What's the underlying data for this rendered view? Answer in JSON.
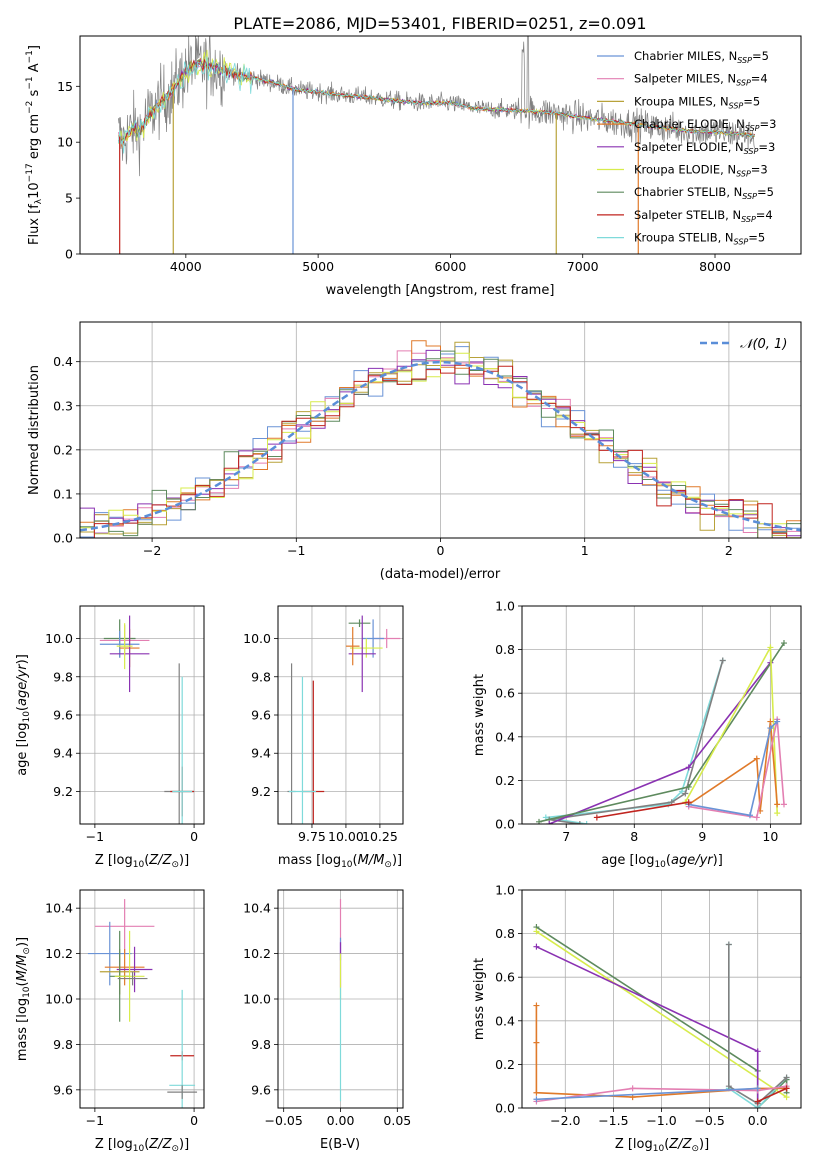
{
  "figure": {
    "title": "PLATE=2086, MJD=53401, FIBERID=0251, z=0.091"
  },
  "colors": {
    "blue": "#6a93d6",
    "pink": "#e37fb2",
    "olive": "#b8a23a",
    "orange": "#e07a2a",
    "purple": "#8a32b2",
    "lime": "#d7ec4c",
    "darkgreen": "#5e8a5e",
    "red": "#c0241f",
    "cyan": "#7fdada",
    "gray": "#808080",
    "dashed": "#5a8ed8"
  },
  "chart_data": [
    {
      "id": "spectrum",
      "type": "line",
      "xlabel": "wavelength [Angstrom, rest frame]",
      "ylabel": "Flux [f_λ10^-17 erg cm^-2 s^-1 A^-1]",
      "xlim": [
        3200,
        8650
      ],
      "ylim": [
        0,
        19.5
      ],
      "xticks": [
        4000,
        5000,
        6000,
        7000,
        8000
      ],
      "yticks": [
        0,
        5,
        10,
        15
      ],
      "legend_position": "top-right",
      "series": [
        {
          "name": "Chabrier MILES, N_SSP=5",
          "color": "blue"
        },
        {
          "name": "Salpeter MILES, N_SSP=4",
          "color": "pink"
        },
        {
          "name": "Kroupa MILES, N_SSP=5",
          "color": "olive"
        },
        {
          "name": "Chabrier ELODIE, N_SSP=3",
          "color": "orange"
        },
        {
          "name": "Salpeter ELODIE, N_SSP=3",
          "color": "purple"
        },
        {
          "name": "Kroupa ELODIE, N_SSP=3",
          "color": "lime"
        },
        {
          "name": "Chabrier STELIB, N_SSP=5",
          "color": "darkgreen"
        },
        {
          "name": "Salpeter STELIB, N_SSP=4",
          "color": "red"
        },
        {
          "name": "Kroupa STELIB, N_SSP=5",
          "color": "cyan"
        }
      ],
      "model_continuum": {
        "x": [
          3500,
          3520,
          3560,
          3600,
          3650,
          3700,
          3750,
          3800,
          3850,
          3900,
          3950,
          4000,
          4050,
          4100,
          4150,
          4200,
          4300,
          4400,
          4500,
          4600,
          4700,
          4800,
          4900,
          5000,
          5200,
          5400,
          5600,
          5800,
          6000,
          6200,
          6400,
          6600,
          6800,
          7000,
          7200,
          7400,
          7600,
          7800,
          8000,
          8200,
          8300
        ],
        "y": [
          10.5,
          10.0,
          10.7,
          11.2,
          11.0,
          12.0,
          12.8,
          13.5,
          14.0,
          14.6,
          15.5,
          16.4,
          16.8,
          17.0,
          16.8,
          16.8,
          16.4,
          16.0,
          15.8,
          15.5,
          15.2,
          14.8,
          14.6,
          14.5,
          14.2,
          14.0,
          13.7,
          13.5,
          13.5,
          13.0,
          12.9,
          12.8,
          12.6,
          12.2,
          11.9,
          11.6,
          11.3,
          11.0,
          10.9,
          10.7,
          10.6
        ]
      },
      "dropouts": [
        {
          "x": 3500,
          "color": "red"
        },
        {
          "x": 3905,
          "color": "olive"
        },
        {
          "x": 4810,
          "color": "blue"
        },
        {
          "x": 6800,
          "color": "olive"
        },
        {
          "x": 7420,
          "color": "orange"
        }
      ]
    },
    {
      "id": "residuals",
      "type": "step",
      "xlabel": "(data-model)/error",
      "ylabel": "Normed distribution",
      "xlim": [
        -2.5,
        2.5
      ],
      "ylim": [
        0,
        0.49
      ],
      "xticks": [
        -2,
        -1,
        0,
        1,
        2
      ],
      "yticks": [
        0.0,
        0.1,
        0.2,
        0.3,
        0.4
      ],
      "grid": true,
      "legend": "𝒩(0, 1)",
      "legend_position": "top-right",
      "bin_width": 0.1
    },
    {
      "id": "age_vs_Z",
      "type": "errorbar",
      "xlabel": "Z [log10(Z/Z⊙)]",
      "ylabel": "age [log10(age/yr)]",
      "xlim": [
        -1.15,
        0.1
      ],
      "ylim": [
        9.03,
        10.17
      ],
      "xticks": [
        -1,
        0
      ],
      "yticks": [
        9.2,
        9.4,
        9.6,
        9.8,
        10.0
      ],
      "grid": true,
      "points": [
        {
          "x": -0.75,
          "y": 10.0,
          "xerr": 0.16,
          "yerr": 0.1,
          "color": "darkgreen"
        },
        {
          "x": -0.7,
          "y": 9.99,
          "xerr": 0.25,
          "yerr": 0.08,
          "color": "pink"
        },
        {
          "x": -0.75,
          "y": 9.97,
          "xerr": 0.2,
          "yerr": 0.07,
          "color": "blue"
        },
        {
          "x": -0.65,
          "y": 9.95,
          "xerr": 0.1,
          "yerr": 0.1,
          "color": "orange"
        },
        {
          "x": -0.65,
          "y": 9.92,
          "xerr": 0.2,
          "yerr": 0.2,
          "color": "purple"
        },
        {
          "x": -0.7,
          "y": 9.96,
          "xerr": 0.08,
          "yerr": 0.12,
          "color": "lime"
        },
        {
          "x": -0.15,
          "y": 9.2,
          "xerr": 0.15,
          "yerr": 0.67,
          "color": "gray"
        },
        {
          "x": -0.12,
          "y": 9.2,
          "xerr": 0.12,
          "yerr": 0.13,
          "color": "red"
        },
        {
          "x": -0.12,
          "y": 9.2,
          "xerr": 0.1,
          "yerr": 0.6,
          "color": "cyan"
        }
      ]
    },
    {
      "id": "age_vs_mass",
      "type": "errorbar",
      "xlabel": "mass [log10(M/M⊙)]",
      "ylabel": "",
      "xlim": [
        9.5,
        10.42
      ],
      "ylim": [
        9.03,
        10.17
      ],
      "xticks": [
        9.75,
        10.0,
        10.25
      ],
      "xticklabels": [
        "9.75",
        "10.00",
        "10.25"
      ],
      "yticks": [
        9.2,
        9.4,
        9.6,
        9.8,
        10.0
      ],
      "grid": true,
      "points": [
        {
          "x": 10.1,
          "y": 10.08,
          "xerr": 0.08,
          "yerr": 0.02,
          "color": "darkgreen"
        },
        {
          "x": 10.3,
          "y": 10.0,
          "xerr": 0.1,
          "yerr": 0.05,
          "color": "pink"
        },
        {
          "x": 10.2,
          "y": 10.0,
          "xerr": 0.08,
          "yerr": 0.1,
          "color": "blue"
        },
        {
          "x": 10.15,
          "y": 9.95,
          "xerr": 0.12,
          "yerr": 0.05,
          "color": "lime"
        },
        {
          "x": 10.12,
          "y": 9.92,
          "xerr": 0.1,
          "yerr": 0.2,
          "color": "purple"
        },
        {
          "x": 10.05,
          "y": 9.96,
          "xerr": 0.05,
          "yerr": 0.1,
          "color": "orange"
        },
        {
          "x": 9.6,
          "y": 9.2,
          "xerr": 0.03,
          "yerr": 0.67,
          "color": "gray"
        },
        {
          "x": 9.76,
          "y": 9.2,
          "xerr": 0.08,
          "yerr": 0.58,
          "color": "red"
        },
        {
          "x": 9.68,
          "y": 9.2,
          "xerr": 0.1,
          "yerr": 0.6,
          "color": "cyan"
        }
      ]
    },
    {
      "id": "weight_vs_age",
      "type": "line",
      "xlabel": "age [log10(age/yr)]",
      "ylabel": "mass weight",
      "xlim": [
        6.35,
        10.45
      ],
      "ylim": [
        0,
        1.0
      ],
      "xticks": [
        7,
        8,
        9,
        10
      ],
      "yticks": [
        0.0,
        0.2,
        0.4,
        0.6,
        0.8,
        1.0
      ],
      "grid": true,
      "series": [
        {
          "color": "cyan",
          "x": [
            7.3,
            6.7,
            8.5,
            8.7,
            9.3
          ],
          "y": [
            0.0,
            0.03,
            0.09,
            0.15,
            0.75
          ]
        },
        {
          "color": "gray",
          "x": [
            7.2,
            6.75,
            8.55,
            8.75,
            9.3
          ],
          "y": [
            0.0,
            0.02,
            0.1,
            0.14,
            0.75
          ]
        },
        {
          "color": "purple",
          "x": [
            6.75,
            8.8,
            10.0
          ],
          "y": [
            0.0,
            0.26,
            0.74
          ]
        },
        {
          "color": "darkgreen",
          "x": [
            6.6,
            8.8,
            10.2
          ],
          "y": [
            0.01,
            0.17,
            0.83
          ]
        },
        {
          "color": "lime",
          "x": [
            8.75,
            10.0,
            10.1
          ],
          "y": [
            0.1,
            0.81,
            0.05
          ]
        },
        {
          "color": "orange",
          "x": [
            8.8,
            9.8,
            9.85,
            10.0,
            10.1
          ],
          "y": [
            0.09,
            0.3,
            0.06,
            0.47,
            0.09
          ]
        },
        {
          "color": "pink",
          "x": [
            8.8,
            9.8,
            10.1,
            10.2
          ],
          "y": [
            0.08,
            0.03,
            0.48,
            0.09
          ]
        },
        {
          "color": "blue",
          "x": [
            8.8,
            9.7,
            10.0,
            10.1
          ],
          "y": [
            0.09,
            0.04,
            0.44,
            0.47
          ]
        },
        {
          "color": "red",
          "x": [
            7.45,
            8.8
          ],
          "y": [
            0.03,
            0.1
          ]
        }
      ]
    },
    {
      "id": "mass_vs_Z",
      "type": "errorbar",
      "xlabel": "Z [log10(Z/Z⊙)]",
      "ylabel": "mass [log10(M/M⊙)]",
      "xlim": [
        -1.15,
        0.1
      ],
      "ylim": [
        9.52,
        10.48
      ],
      "xticks": [
        -1,
        0
      ],
      "yticks": [
        9.6,
        9.8,
        10.0,
        10.2,
        10.4
      ],
      "grid": true,
      "points": [
        {
          "x": -0.7,
          "y": 10.32,
          "xerr": 0.3,
          "yerr": 0.12,
          "color": "pink"
        },
        {
          "x": -0.85,
          "y": 10.2,
          "xerr": 0.22,
          "yerr": 0.14,
          "color": "blue"
        },
        {
          "x": -0.7,
          "y": 10.14,
          "xerr": 0.2,
          "yerr": 0.08,
          "color": "orange"
        },
        {
          "x": -0.6,
          "y": 10.13,
          "xerr": 0.18,
          "yerr": 0.1,
          "color": "purple"
        },
        {
          "x": -0.75,
          "y": 10.12,
          "xerr": 0.2,
          "yerr": 0.1,
          "color": "olive"
        },
        {
          "x": -0.75,
          "y": 10.1,
          "xerr": 0.1,
          "yerr": 0.2,
          "color": "darkgreen"
        },
        {
          "x": -0.65,
          "y": 10.1,
          "xerr": 0.15,
          "yerr": 0.2,
          "color": "lime"
        },
        {
          "x": -0.62,
          "y": 10.09,
          "xerr": 0.15,
          "yerr": 0.03,
          "color": "gray"
        },
        {
          "x": -0.12,
          "y": 9.75,
          "xerr": 0.12,
          "yerr": 0.02,
          "color": "red"
        },
        {
          "x": -0.12,
          "y": 9.62,
          "xerr": 0.13,
          "yerr": 0.42,
          "color": "cyan"
        },
        {
          "x": -0.12,
          "y": 9.59,
          "xerr": 0.15,
          "yerr": 0.03,
          "color": "gray"
        }
      ]
    },
    {
      "id": "mass_vs_ebv",
      "type": "errorbar",
      "xlabel": "E(B-V)",
      "ylabel": "",
      "xlim": [
        -0.055,
        0.055
      ],
      "ylim": [
        9.52,
        10.48
      ],
      "xticks": [
        -0.05,
        0.0,
        0.05
      ],
      "xticklabels": [
        "−0.05",
        "0.00",
        "0.05"
      ],
      "yticks": [
        9.6,
        9.8,
        10.0,
        10.2,
        10.4
      ],
      "grid": true,
      "points": [
        {
          "x": 0.0,
          "y": 10.32,
          "xerr": 0.0,
          "yerr": 0.12,
          "color": "pink"
        },
        {
          "x": 0.0,
          "y": 10.22,
          "xerr": 0.0,
          "yerr": 0.05,
          "color": "blue"
        },
        {
          "x": 0.0,
          "y": 10.15,
          "xerr": 0.0,
          "yerr": 0.1,
          "color": "purple"
        },
        {
          "x": 0.0,
          "y": 10.1,
          "xerr": 0.0,
          "yerr": 0.1,
          "color": "lime"
        },
        {
          "x": 0.0,
          "y": 9.8,
          "xerr": 0.0,
          "yerr": 0.25,
          "color": "cyan"
        }
      ]
    },
    {
      "id": "weight_vs_Z",
      "type": "line",
      "xlabel": "Z [log10(Z/Z⊙)]",
      "ylabel": "mass weight",
      "xlim": [
        -2.45,
        0.45
      ],
      "ylim": [
        0,
        1.0
      ],
      "xticks": [
        -2.0,
        -1.5,
        -1.0,
        -0.5,
        0.0
      ],
      "xticklabels": [
        "−2.0",
        "−1.5",
        "−1.0",
        "−0.5",
        "0.0"
      ],
      "yticks": [
        0.0,
        0.2,
        0.4,
        0.6,
        0.8,
        1.0
      ],
      "grid": true,
      "series": [
        {
          "color": "darkgreen",
          "x": [
            -2.3,
            0.0,
            0.0,
            0.3,
            0.3
          ],
          "y": [
            0.83,
            0.17,
            0.0,
            0.13,
            0.07
          ]
        },
        {
          "color": "lime",
          "x": [
            -2.3,
            0.3
          ],
          "y": [
            0.81,
            0.05
          ]
        },
        {
          "color": "purple",
          "x": [
            -2.3,
            0.0,
            0.0
          ],
          "y": [
            0.74,
            0.26,
            0.0
          ]
        },
        {
          "color": "cyan",
          "x": [
            -0.3,
            -0.3,
            0.0,
            0.0,
            0.3
          ],
          "y": [
            0.75,
            0.09,
            0.0,
            0.0,
            0.14
          ]
        },
        {
          "color": "gray",
          "x": [
            -0.3,
            -0.3,
            0.0,
            0.3
          ],
          "y": [
            0.75,
            0.1,
            0.02,
            0.14
          ]
        },
        {
          "color": "orange",
          "x": [
            -2.3,
            -2.3,
            -2.3,
            -1.3,
            0.0,
            0.3
          ],
          "y": [
            0.47,
            0.3,
            0.07,
            0.05,
            0.09,
            0.09
          ]
        },
        {
          "color": "pink",
          "x": [
            -2.3,
            -1.3,
            0.0,
            0.3
          ],
          "y": [
            0.03,
            0.09,
            0.08,
            0.1
          ]
        },
        {
          "color": "blue",
          "x": [
            -2.3,
            0.0
          ],
          "y": [
            0.04,
            0.09
          ]
        },
        {
          "color": "red",
          "x": [
            0.0,
            0.3
          ],
          "y": [
            0.03,
            0.09
          ]
        }
      ]
    }
  ]
}
